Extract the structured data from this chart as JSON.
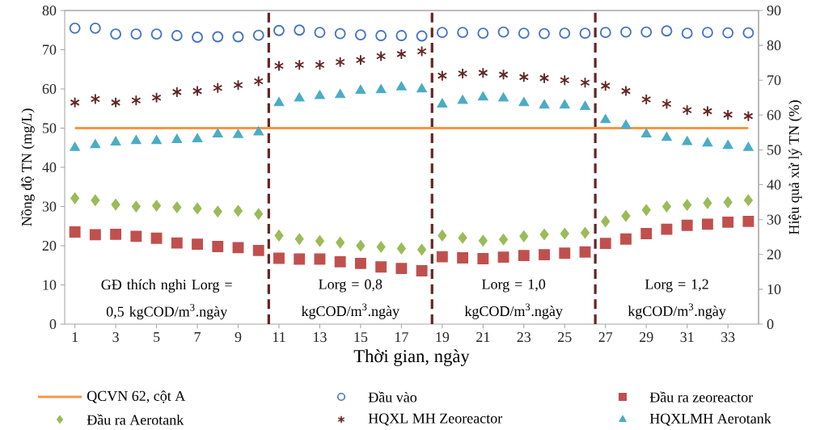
{
  "chart_data": {
    "type": "scatter",
    "xlabel": "Thời gian, ngày",
    "ylabel": "Nồng độ TN (mg/L)",
    "y2label": "Hiệu quả xử lý TN (%)",
    "x": [
      1,
      2,
      3,
      4,
      5,
      6,
      7,
      8,
      9,
      10,
      11,
      12,
      13,
      14,
      15,
      16,
      17,
      18,
      19,
      20,
      21,
      22,
      23,
      24,
      25,
      26,
      27,
      28,
      29,
      30,
      31,
      32,
      33,
      34
    ],
    "xlim": [
      0.5,
      34.5
    ],
    "xticks": [
      1,
      3,
      5,
      7,
      9,
      11,
      13,
      15,
      17,
      19,
      21,
      23,
      25,
      27,
      29,
      31,
      33
    ],
    "ylim": [
      0,
      80
    ],
    "yticks": [
      0,
      10,
      20,
      30,
      40,
      50,
      60,
      70,
      80
    ],
    "y2lim": [
      0,
      90
    ],
    "y2ticks": [
      0,
      10,
      20,
      30,
      40,
      50,
      60,
      70,
      80,
      90
    ],
    "legend": "bottom",
    "series": [
      {
        "name": "QCVN 62, cột A",
        "type": "line",
        "marker": "none",
        "line_style": "solid",
        "color": "#f79646",
        "values": [
          50,
          50,
          50,
          50,
          50,
          50,
          50,
          50,
          50,
          50,
          50,
          50,
          50,
          50,
          50,
          50,
          50,
          50,
          50,
          50,
          50,
          50,
          50,
          50,
          50,
          50,
          50,
          50,
          50,
          50,
          50,
          50,
          50,
          50
        ]
      },
      {
        "name": "Đầu vào",
        "marker": "circle",
        "color": "#4472c4",
        "values": [
          75.5,
          75.5,
          74.0,
          74.0,
          74.0,
          73.6,
          73.2,
          73.3,
          73.3,
          73.7,
          74.9,
          75.0,
          74.4,
          74.1,
          73.8,
          73.6,
          73.6,
          73.5,
          74.4,
          74.4,
          74.2,
          74.5,
          74.2,
          74.1,
          74.2,
          74.2,
          74.4,
          74.5,
          74.5,
          74.8,
          74.2,
          74.4,
          74.3,
          74.3
        ]
      },
      {
        "name": "Đầu ra zeoreactor",
        "marker": "square",
        "color": "#c0504d",
        "values": [
          23.5,
          22.8,
          22.9,
          22.4,
          21.9,
          20.7,
          20.4,
          19.8,
          19.5,
          18.8,
          16.8,
          16.6,
          16.6,
          15.9,
          15.5,
          14.6,
          14.2,
          13.6,
          17.2,
          16.9,
          16.7,
          17.1,
          17.5,
          17.7,
          18.1,
          18.4,
          20.6,
          21.7,
          23.1,
          24.2,
          25.2,
          25.5,
          26.0,
          26.2
        ]
      },
      {
        "name": "Đầu ra Aerotank",
        "marker": "diamond",
        "color": "#9bbb59",
        "values": [
          32.1,
          31.6,
          30.5,
          30.0,
          30.2,
          29.8,
          29.5,
          28.7,
          28.9,
          28.1,
          22.6,
          21.7,
          21.2,
          20.8,
          20.0,
          19.7,
          19.3,
          19.0,
          22.6,
          22.0,
          21.3,
          21.6,
          22.4,
          22.9,
          23.1,
          23.3,
          26.2,
          27.6,
          29.1,
          30.0,
          30.4,
          30.9,
          31.1,
          31.6
        ]
      },
      {
        "name": "HQXL MH Zeoreactor",
        "marker": "cross",
        "axis": "y2",
        "color": "#632523",
        "values": [
          63.6,
          64.6,
          63.6,
          64.2,
          65.0,
          66.6,
          66.9,
          67.8,
          68.6,
          69.7,
          74.1,
          74.4,
          74.4,
          75.2,
          75.8,
          76.9,
          77.5,
          78.3,
          71.3,
          71.9,
          72.1,
          71.6,
          70.9,
          70.6,
          70.0,
          69.3,
          68.4,
          66.9,
          64.5,
          63.2,
          61.4,
          61.1,
          60.1,
          59.7
        ]
      },
      {
        "name": "HQXLMH Aerotank",
        "marker": "triangle",
        "axis": "y2",
        "color": "#4bacc6",
        "values": [
          50.6,
          51.4,
          52.2,
          52.6,
          52.6,
          52.9,
          53.1,
          54.5,
          54.3,
          55.1,
          63.5,
          64.8,
          65.5,
          65.8,
          67.0,
          67.2,
          68.0,
          67.4,
          63.1,
          64.1,
          65.1,
          64.8,
          63.5,
          62.8,
          62.8,
          62.4,
          58.6,
          57.0,
          54.5,
          53.5,
          52.3,
          51.9,
          51.2,
          50.6
        ]
      }
    ],
    "ref_lines": [
      {
        "axis": "x",
        "value": 10.5,
        "color": "#632523",
        "line_style": "dashed"
      },
      {
        "axis": "x",
        "value": 18.5,
        "color": "#632523",
        "line_style": "dashed"
      },
      {
        "axis": "x",
        "value": 26.5,
        "color": "#632523",
        "line_style": "dashed"
      }
    ],
    "annotations": [
      "GĐ thích nghi Lorg = 0,5 kgCOD/m$^{3}$.ngày",
      "Lorg = 0,8 kgCOD/m$^{3}$.ngày",
      "Lorg = 1,0 kgCOD/m$^{3}$.ngày",
      "Lorg = 1,2 kgCOD/m$^{3}$.ngày"
    ]
  }
}
